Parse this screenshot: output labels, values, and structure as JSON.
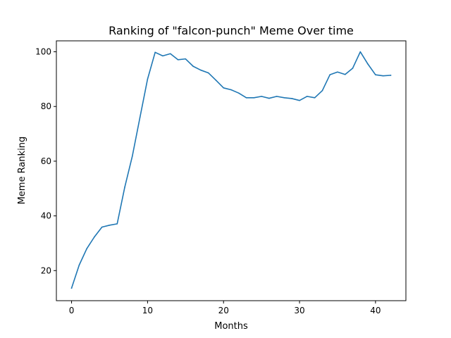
{
  "chart_data": {
    "type": "line",
    "title": "Ranking of \"falcon-punch\" Meme Over time",
    "xlabel": "Months",
    "ylabel": "Meme Ranking",
    "xlim": [
      -2,
      44
    ],
    "ylim": [
      9,
      104
    ],
    "xticks": [
      0,
      10,
      20,
      30,
      40
    ],
    "yticks": [
      20,
      40,
      60,
      80,
      100
    ],
    "grid": false,
    "line_color": "#1f77b4",
    "series": [
      {
        "x": [
          0,
          1,
          2,
          3,
          4,
          5,
          6,
          7,
          8,
          9,
          10,
          11,
          12,
          13,
          14,
          15,
          16,
          17,
          18,
          19,
          20,
          21,
          22,
          23,
          24,
          25,
          26,
          27,
          28,
          29,
          30,
          31,
          32,
          33,
          34,
          35,
          36,
          37,
          38,
          39,
          40,
          41,
          42
        ],
        "values": [
          13.6,
          22,
          28,
          32.3,
          35.9,
          36.6,
          37.1,
          50.5,
          61.9,
          76,
          90,
          99.8,
          98.5,
          99.3,
          97.1,
          97.4,
          94.7,
          93.3,
          92.3,
          89.6,
          86.8,
          86.1,
          84.9,
          83.2,
          83.2,
          83.7,
          83,
          83.7,
          83.2,
          82.9,
          82.2,
          83.7,
          83.2,
          85.8,
          91.6,
          92.6,
          91.7,
          94,
          100,
          95.5,
          91.6,
          91.2,
          91.4
        ]
      }
    ]
  }
}
